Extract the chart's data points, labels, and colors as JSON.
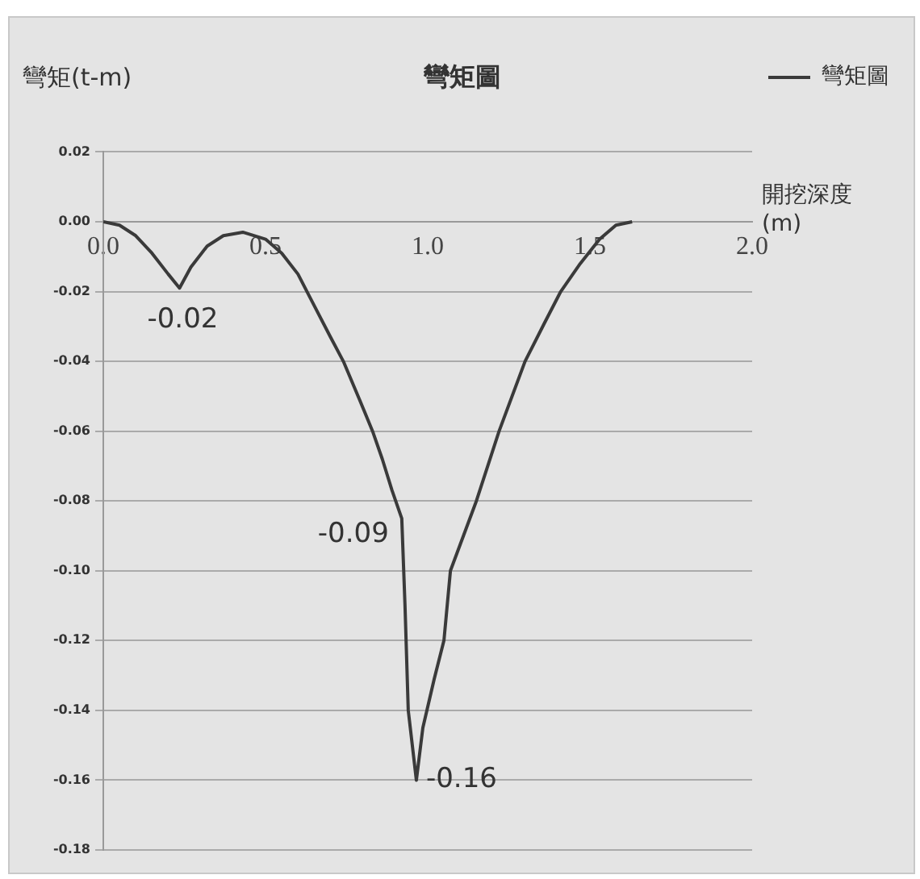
{
  "chart_data": {
    "type": "line",
    "title": "彎矩圖",
    "ylabel": "彎矩(t-m)",
    "xlabel": "開挖深度 (m)",
    "series": [
      {
        "name": "彎矩圖",
        "color": "#3a3a3a",
        "x": [
          0,
          0.05,
          0.1,
          0.15,
          0.2,
          0.235,
          0.27,
          0.32,
          0.37,
          0.43,
          0.5,
          0.55,
          0.6,
          0.65,
          0.7,
          0.74,
          0.79,
          0.83,
          0.86,
          0.89,
          0.92,
          0.93,
          0.94,
          0.965,
          0.985,
          1.02,
          1.05,
          1.07,
          1.11,
          1.15,
          1.22,
          1.3,
          1.36,
          1.41,
          1.47,
          1.53,
          1.58,
          1.63
        ],
        "values": [
          0,
          -0.001,
          -0.004,
          -0.009,
          -0.015,
          -0.019,
          -0.013,
          -0.007,
          -0.004,
          -0.003,
          -0.005,
          -0.009,
          -0.015,
          -0.024,
          -0.033,
          -0.04,
          -0.051,
          -0.06,
          -0.068,
          -0.077,
          -0.085,
          -0.11,
          -0.14,
          -0.16,
          -0.145,
          -0.131,
          -0.12,
          -0.1,
          -0.09,
          -0.08,
          -0.06,
          -0.04,
          -0.029,
          -0.02,
          -0.012,
          -0.005,
          -0.001,
          0
        ]
      }
    ],
    "xlim": [
      0,
      2
    ],
    "xticks": [
      {
        "value": 0,
        "label": "0.0"
      },
      {
        "value": 0.5,
        "label": "0.5"
      },
      {
        "value": 1,
        "label": "1.0"
      },
      {
        "value": 1.5,
        "label": "1.5"
      },
      {
        "value": 2,
        "label": "2.0"
      }
    ],
    "ylim": [
      -0.18,
      0.02
    ],
    "yticks": [
      {
        "value": 0.02,
        "label": "0.02"
      },
      {
        "value": 0,
        "label": "0.00"
      },
      {
        "value": -0.02,
        "label": "-0.02"
      },
      {
        "value": -0.04,
        "label": "-0.04"
      },
      {
        "value": -0.06,
        "label": "-0.06"
      },
      {
        "value": -0.08,
        "label": "-0.08"
      },
      {
        "value": -0.1,
        "label": "-0.10"
      },
      {
        "value": -0.12,
        "label": "-0.12"
      },
      {
        "value": -0.14,
        "label": "-0.14"
      },
      {
        "value": -0.16,
        "label": "-0.16"
      },
      {
        "value": -0.18,
        "label": "-0.18"
      }
    ],
    "annotations": [
      {
        "text": "-0.02",
        "x": 0.235,
        "y": -0.019
      },
      {
        "text": "-0.09",
        "x": 0.92,
        "y": -0.085
      },
      {
        "text": "-0.16",
        "x": 0.965,
        "y": -0.16
      }
    ],
    "grid": "y",
    "legend": "right",
    "marker": "none",
    "line_style": "solid"
  }
}
